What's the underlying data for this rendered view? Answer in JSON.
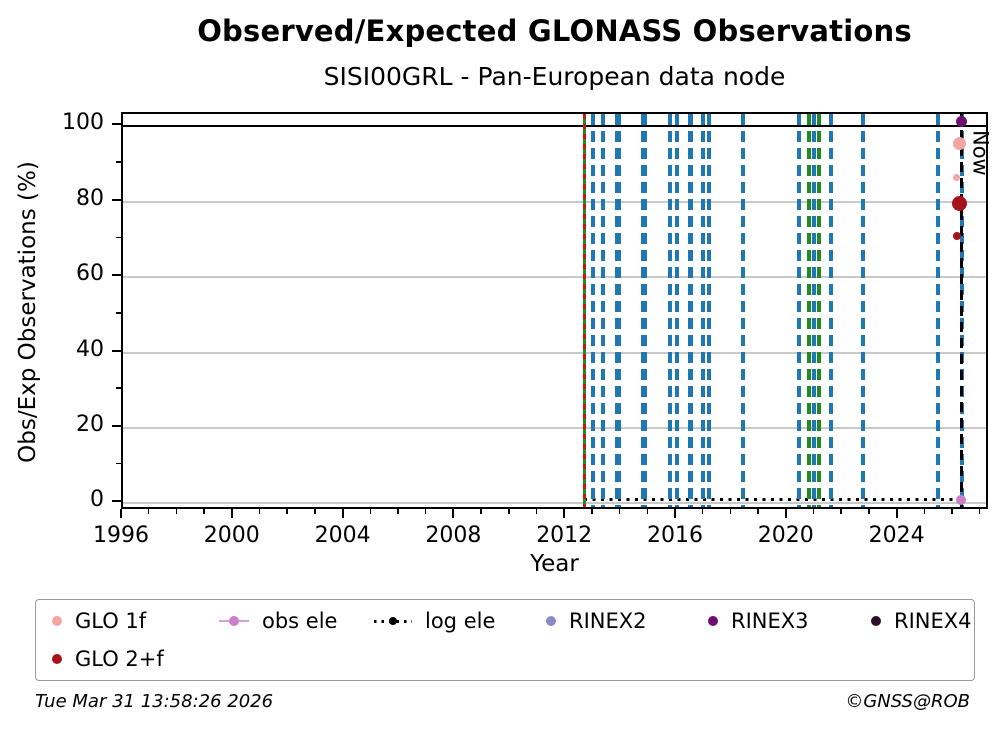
{
  "footer": {
    "timestamp": "Tue Mar 31 13:58:26 2026",
    "copyright": "©GNSS@ROB"
  },
  "legend": {
    "items": [
      {
        "label": "GLO 1f",
        "color": "#F4A5A2",
        "marker": "dot"
      },
      {
        "label": "obs ele",
        "color": "#C97FC9",
        "marker": "line-dot"
      },
      {
        "label": "log ele",
        "color": "#000000",
        "marker": "dotted-line-dot"
      },
      {
        "label": "RINEX2",
        "color": "#8B8BC8",
        "marker": "dot"
      },
      {
        "label": "RINEX3",
        "color": "#6B0F70",
        "marker": "dot"
      },
      {
        "label": "RINEX4",
        "color": "#2B0E2D",
        "marker": "dot"
      },
      {
        "label": "GLO 2+f",
        "color": "#A8131A",
        "marker": "dot"
      }
    ]
  },
  "chart_data": {
    "type": "scatter",
    "title": "Observed/Expected GLONASS Observations",
    "subtitle": "SISI00GRL - Pan-European data node",
    "xlabel": "Year",
    "ylabel": "Obs/Exp Observations (%)",
    "xlim": [
      1996,
      2027.3
    ],
    "ylim": [
      -2,
      103.2
    ],
    "x_major_ticks": [
      1996,
      2000,
      2004,
      2008,
      2012,
      2016,
      2020,
      2024
    ],
    "x_minor_step": 1,
    "y_major_ticks": [
      0,
      20,
      40,
      60,
      80,
      100
    ],
    "y_minor_ticks": [
      10,
      30,
      50,
      70,
      90
    ],
    "gridlines_y": [
      0,
      20,
      40,
      60,
      80
    ],
    "grid": "horizontal-only",
    "reference_line_y": 100,
    "legend_position": "bottom",
    "now": {
      "x": 2026.28,
      "label": "Now"
    },
    "colors": {
      "blue": "#1F77B4",
      "green": "#208B20",
      "red": "#CC1414",
      "black": "#000000"
    },
    "event_lines": [
      {
        "x": 2012.66,
        "color": "green",
        "style": "solid",
        "width": 3
      },
      {
        "x": 2012.66,
        "color": "red",
        "style": "dash-fine",
        "width": 3
      },
      {
        "x": 2012.96,
        "color": "blue",
        "style": "dash",
        "width": 4
      },
      {
        "x": 2013.34,
        "color": "blue",
        "style": "dash",
        "width": 4
      },
      {
        "x": 2013.86,
        "color": "blue",
        "style": "dash",
        "width": 6
      },
      {
        "x": 2014.82,
        "color": "blue",
        "style": "dash",
        "width": 6
      },
      {
        "x": 2015.75,
        "color": "blue",
        "style": "dash",
        "width": 4
      },
      {
        "x": 2015.99,
        "color": "blue",
        "style": "dash",
        "width": 4
      },
      {
        "x": 2016.47,
        "color": "blue",
        "style": "dash",
        "width": 5
      },
      {
        "x": 2016.93,
        "color": "blue",
        "style": "dash",
        "width": 4
      },
      {
        "x": 2017.17,
        "color": "blue",
        "style": "dash",
        "width": 4
      },
      {
        "x": 2018.4,
        "color": "blue",
        "style": "dash",
        "width": 4
      },
      {
        "x": 2020.4,
        "color": "blue",
        "style": "dash",
        "width": 4
      },
      {
        "x": 2020.77,
        "color": "green",
        "style": "dash",
        "width": 4
      },
      {
        "x": 2020.96,
        "color": "blue",
        "style": "dash",
        "width": 4
      },
      {
        "x": 2021.11,
        "color": "green",
        "style": "dash",
        "width": 4
      },
      {
        "x": 2021.56,
        "color": "blue",
        "style": "dash",
        "width": 4
      },
      {
        "x": 2022.71,
        "color": "blue",
        "style": "dash",
        "width": 4
      },
      {
        "x": 2025.44,
        "color": "blue",
        "style": "dash",
        "width": 4
      },
      {
        "x": 2026.28,
        "color": "blue",
        "style": "dash",
        "width": 4
      },
      {
        "x": 2026.28,
        "color": "black",
        "style": "dash-now",
        "width": 3.5
      }
    ],
    "log_ele_line": {
      "y": 1,
      "x_start": 2012.66,
      "x_end": 2026.3
    },
    "points": [
      {
        "series": "RINEX3",
        "x": 2026.28,
        "y": 101.3,
        "size": 11
      },
      {
        "series": "GLO 1f",
        "x": 2026.2,
        "y": 95.5,
        "size": 13
      },
      {
        "series": "GLO 1f",
        "x": 2026.1,
        "y": 86.5,
        "size": 7
      },
      {
        "series": "GLO 2+f",
        "x": 2026.2,
        "y": 79.5,
        "size": 15
      },
      {
        "series": "GLO 2+f",
        "x": 2026.1,
        "y": 71.0,
        "size": 8
      },
      {
        "series": "obs ele",
        "x": 2026.25,
        "y": 1.0,
        "size": 10
      }
    ]
  }
}
